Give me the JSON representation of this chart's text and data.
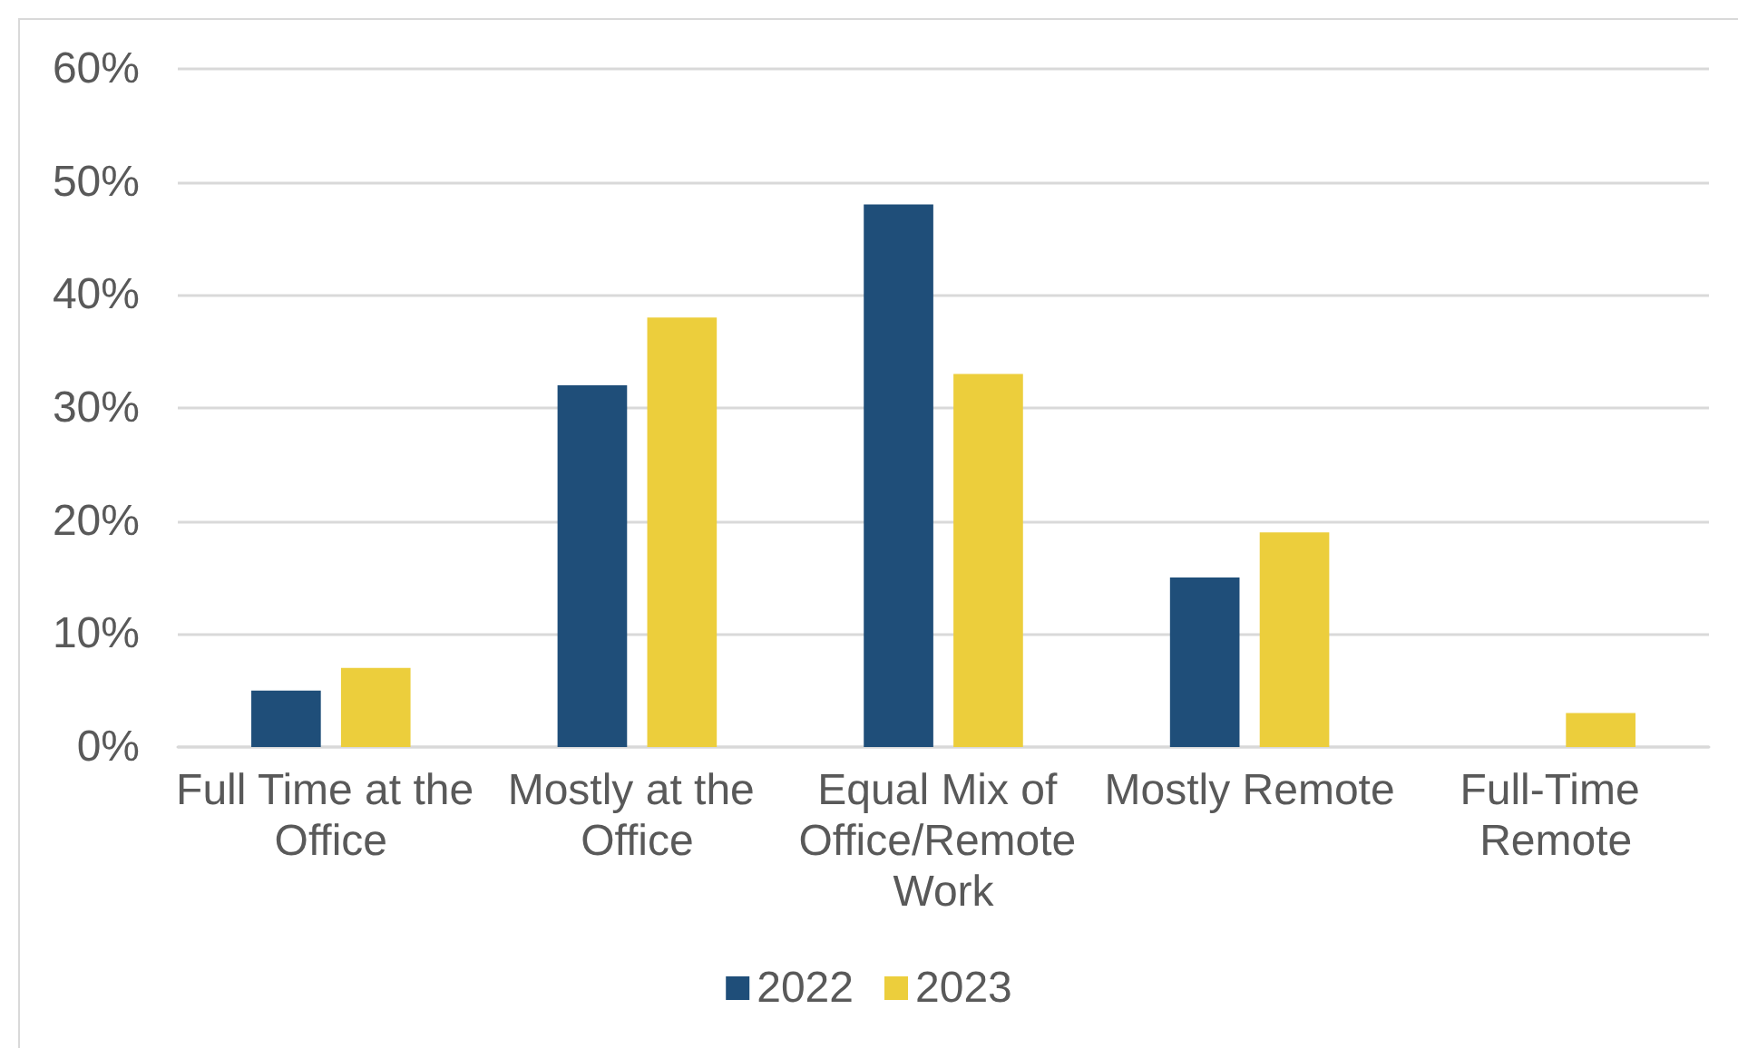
{
  "chart_data": {
    "type": "bar",
    "categories": [
      "Full Time at the Office",
      "Mostly at the Office",
      "Equal Mix of Office/Remote Work",
      "Mostly Remote",
      "Full-Time Remote"
    ],
    "series": [
      {
        "name": "2022",
        "color": "#1f4e79",
        "values": [
          5,
          32,
          48,
          15,
          0
        ]
      },
      {
        "name": "2023",
        "color": "#ecce3c",
        "values": [
          7,
          38,
          33,
          19,
          3
        ]
      }
    ],
    "ylim": [
      0,
      60
    ],
    "yticks": [
      {
        "value": 0,
        "label": "0%"
      },
      {
        "value": 10,
        "label": "10%"
      },
      {
        "value": 20,
        "label": "20%"
      },
      {
        "value": 30,
        "label": "30%"
      },
      {
        "value": 40,
        "label": "40%"
      },
      {
        "value": 50,
        "label": "50%"
      },
      {
        "value": 60,
        "label": "60%"
      }
    ],
    "grid": "y",
    "legend": "bottom"
  }
}
